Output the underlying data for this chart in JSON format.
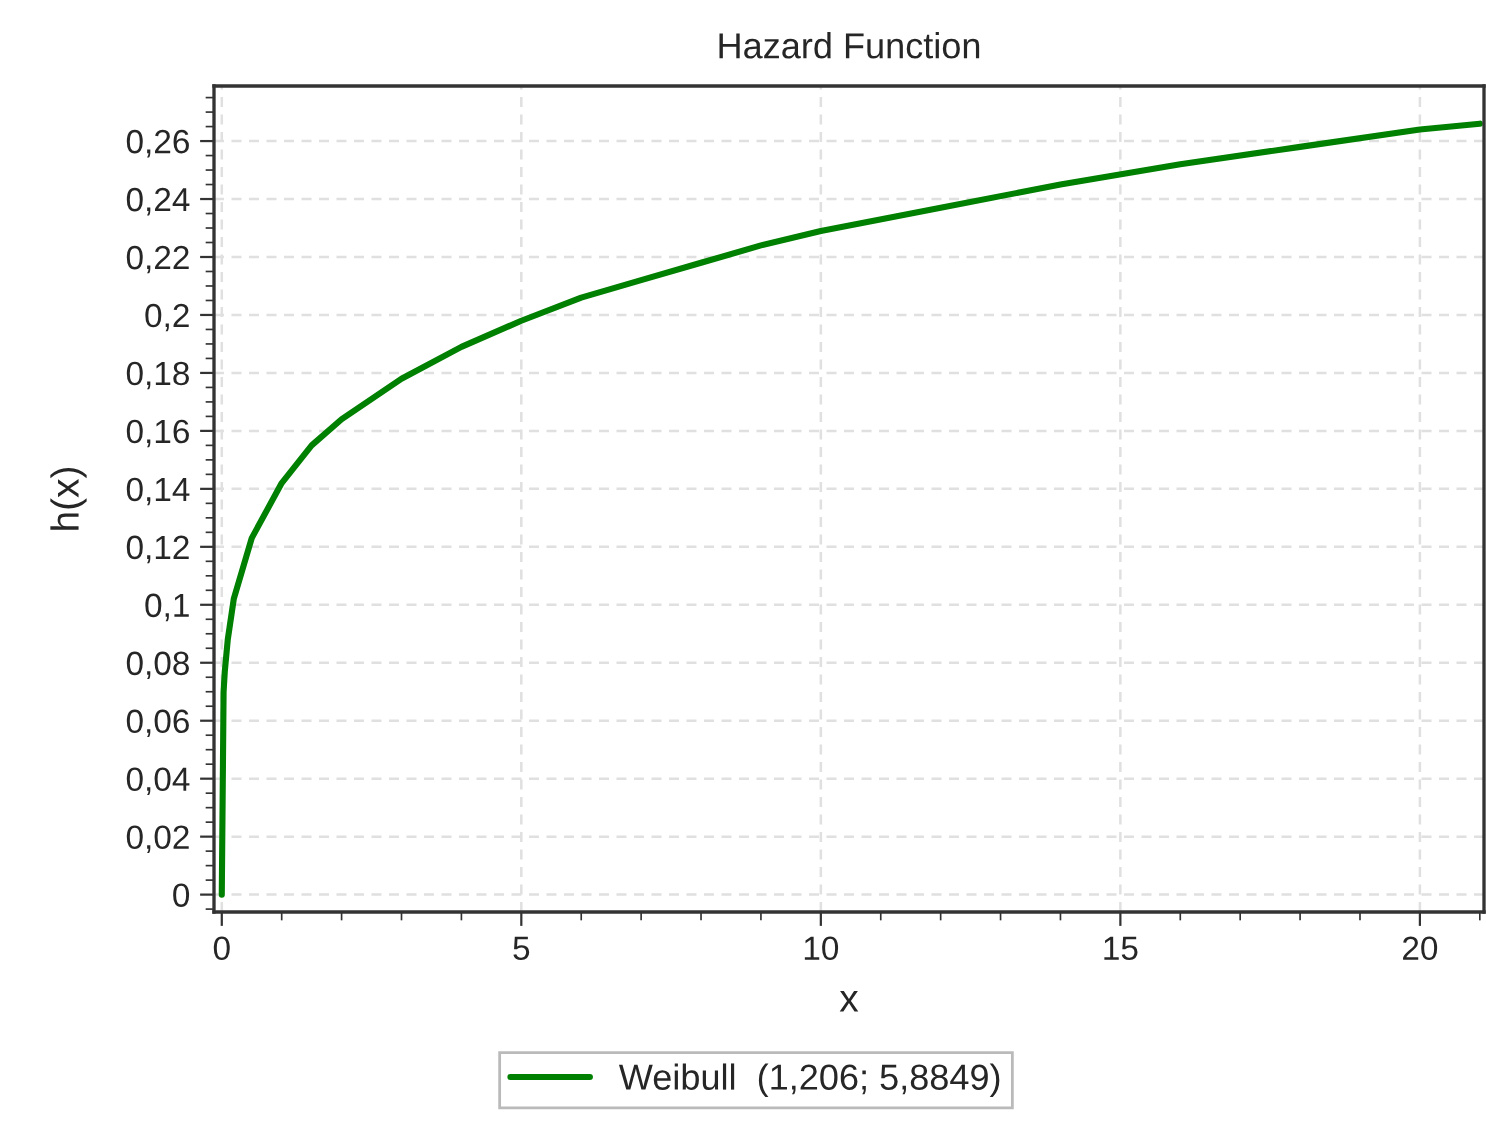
{
  "chart_data": {
    "type": "line",
    "title": "Hazard Function",
    "xlabel": "x",
    "ylabel": "h(x)",
    "series": [
      {
        "name": "Weibull  (1,206; 5,8849)",
        "color": "#008000",
        "x": [
          0,
          0.03,
          0.05,
          0.1,
          0.2,
          0.5,
          1,
          1.5,
          2,
          3,
          4,
          5,
          6,
          7,
          8,
          9,
          10,
          12,
          14,
          16,
          18,
          20,
          21
        ],
        "values": [
          0,
          0.07,
          0.077,
          0.088,
          0.102,
          0.123,
          0.142,
          0.155,
          0.164,
          0.178,
          0.189,
          0.198,
          0.206,
          0.212,
          0.218,
          0.224,
          0.229,
          0.237,
          0.245,
          0.252,
          0.258,
          0.264,
          0.266
        ]
      }
    ],
    "xlim": [
      -0.13,
      21.07
    ],
    "ylim": [
      -0.006,
      0.279
    ],
    "xticks": [
      0,
      5,
      10,
      15,
      20
    ],
    "yticks": [
      {
        "value": 0,
        "label": "0"
      },
      {
        "value": 0.02,
        "label": "0,02"
      },
      {
        "value": 0.04,
        "label": "0,04"
      },
      {
        "value": 0.06,
        "label": "0,06"
      },
      {
        "value": 0.08,
        "label": "0,08"
      },
      {
        "value": 0.1,
        "label": "0,1"
      },
      {
        "value": 0.12,
        "label": "0,12"
      },
      {
        "value": 0.14,
        "label": "0,14"
      },
      {
        "value": 0.16,
        "label": "0,16"
      },
      {
        "value": 0.18,
        "label": "0,18"
      },
      {
        "value": 0.2,
        "label": "0,2"
      },
      {
        "value": 0.22,
        "label": "0,22"
      },
      {
        "value": 0.24,
        "label": "0,24"
      },
      {
        "value": 0.26,
        "label": "0,26"
      }
    ],
    "grid": true,
    "legend": "bottom",
    "line_style": "solid",
    "marker": "none"
  }
}
